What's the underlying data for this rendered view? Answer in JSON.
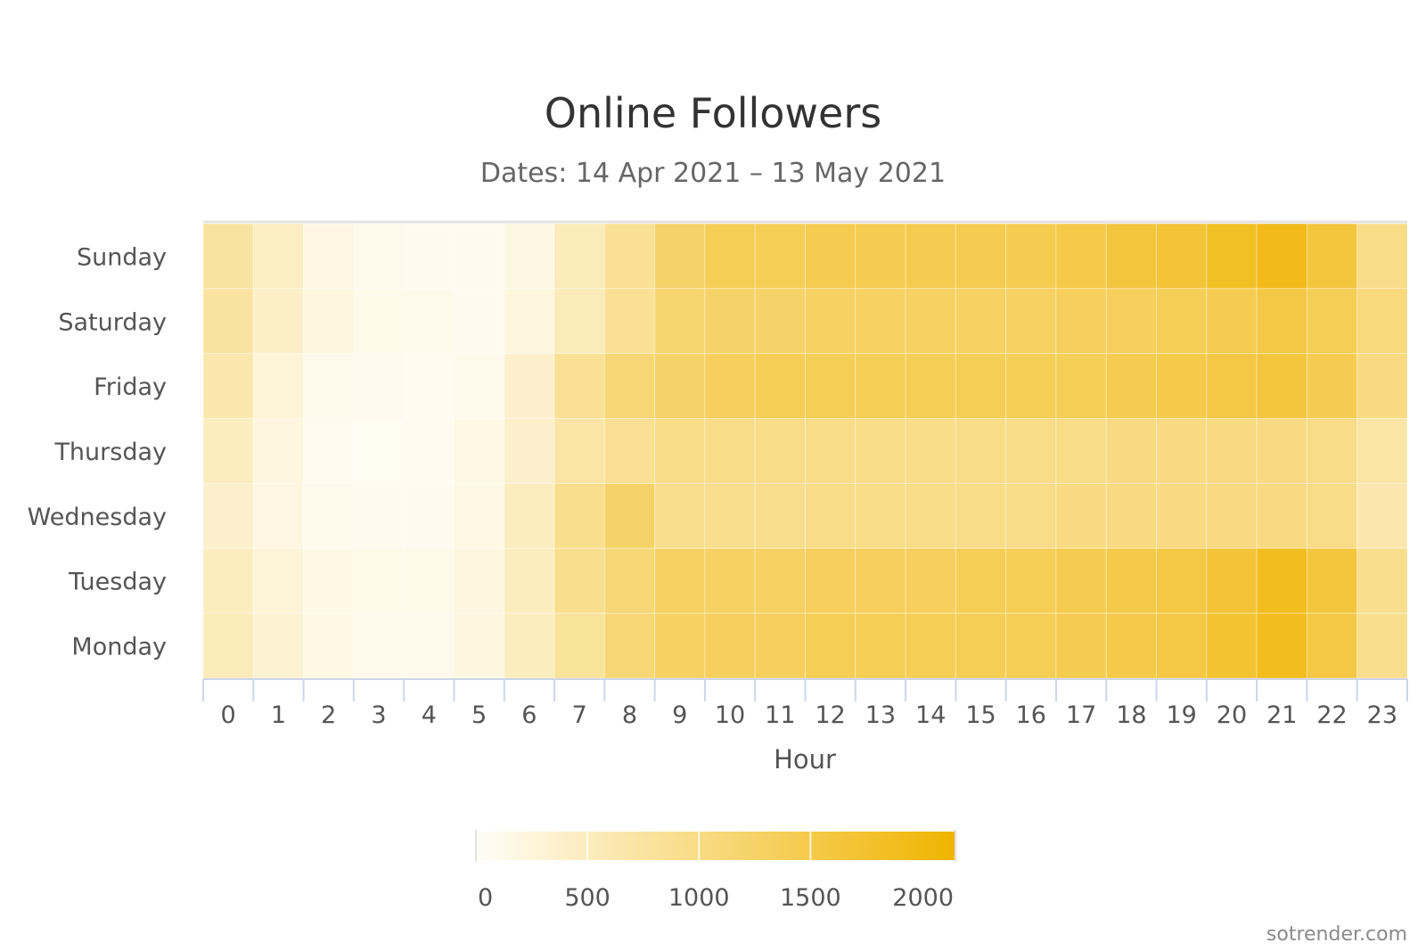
{
  "chart_data": {
    "type": "heatmap",
    "title": "Online Followers",
    "subtitle": "Dates: 14 Apr 2021 – 13 May 2021",
    "xlabel": "Hour",
    "ylabel": "",
    "x": [
      "0",
      "1",
      "2",
      "3",
      "4",
      "5",
      "6",
      "7",
      "8",
      "9",
      "10",
      "11",
      "12",
      "13",
      "14",
      "15",
      "16",
      "17",
      "18",
      "19",
      "20",
      "21",
      "22",
      "23"
    ],
    "y": [
      "Sunday",
      "Saturday",
      "Friday",
      "Thursday",
      "Wednesday",
      "Tuesday",
      "Monday"
    ],
    "values": [
      [
        700,
        420,
        180,
        100,
        80,
        80,
        170,
        500,
        800,
        1150,
        1300,
        1300,
        1350,
        1350,
        1350,
        1350,
        1350,
        1400,
        1500,
        1550,
        1700,
        1800,
        1500,
        900
      ],
      [
        700,
        380,
        200,
        120,
        100,
        80,
        200,
        500,
        800,
        1100,
        1150,
        1150,
        1200,
        1200,
        1200,
        1200,
        1200,
        1250,
        1250,
        1300,
        1350,
        1450,
        1300,
        1000
      ],
      [
        600,
        250,
        100,
        70,
        60,
        100,
        350,
        800,
        1050,
        1150,
        1250,
        1300,
        1300,
        1300,
        1300,
        1300,
        1300,
        1300,
        1350,
        1400,
        1450,
        1500,
        1350,
        950
      ],
      [
        450,
        200,
        60,
        40,
        50,
        150,
        350,
        650,
        800,
        900,
        900,
        900,
        900,
        900,
        900,
        900,
        900,
        900,
        950,
        950,
        950,
        950,
        900,
        650
      ],
      [
        350,
        180,
        100,
        80,
        70,
        150,
        450,
        850,
        1150,
        850,
        850,
        850,
        900,
        900,
        900,
        900,
        900,
        950,
        950,
        950,
        950,
        950,
        900,
        600
      ],
      [
        450,
        250,
        150,
        110,
        110,
        200,
        450,
        850,
        1050,
        1200,
        1200,
        1200,
        1250,
        1250,
        1250,
        1300,
        1300,
        1350,
        1400,
        1450,
        1550,
        1750,
        1500,
        850
      ],
      [
        500,
        300,
        150,
        100,
        100,
        200,
        450,
        750,
        1050,
        1200,
        1250,
        1250,
        1300,
        1300,
        1300,
        1300,
        1300,
        1350,
        1400,
        1450,
        1600,
        1750,
        1450,
        850
      ]
    ],
    "colorscale": {
      "min": 0,
      "max": 2000,
      "min_color": "#fffdf7",
      "max_color": "#f0b400"
    },
    "legend": {
      "position": "bottom",
      "ticks": [
        "0",
        "500",
        "1000",
        "1500",
        "2000"
      ]
    },
    "credit": "sotrender.com"
  }
}
